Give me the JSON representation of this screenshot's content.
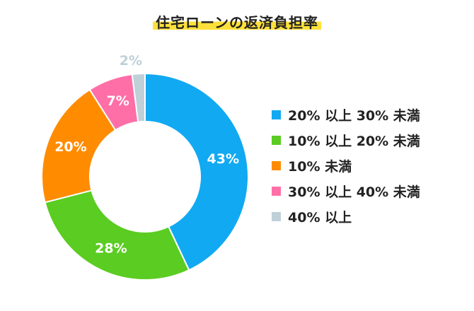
{
  "chart_data": {
    "type": "pie",
    "title": "住宅ローンの返済負担率",
    "categories": [
      "20% 以上 30% 未満",
      "10% 以上 20% 未満",
      "10% 未満",
      "30% 以上 40% 未満",
      "40% 以上"
    ],
    "values": [
      43,
      28,
      20,
      7,
      2
    ],
    "value_labels": [
      "43%",
      "28%",
      "20%",
      "7%",
      "2%"
    ],
    "colors": [
      "#11a9f2",
      "#5bcc22",
      "#ff8c00",
      "#ff6fa7",
      "#bfd0d8"
    ],
    "legend_position": "right",
    "donut": true
  }
}
